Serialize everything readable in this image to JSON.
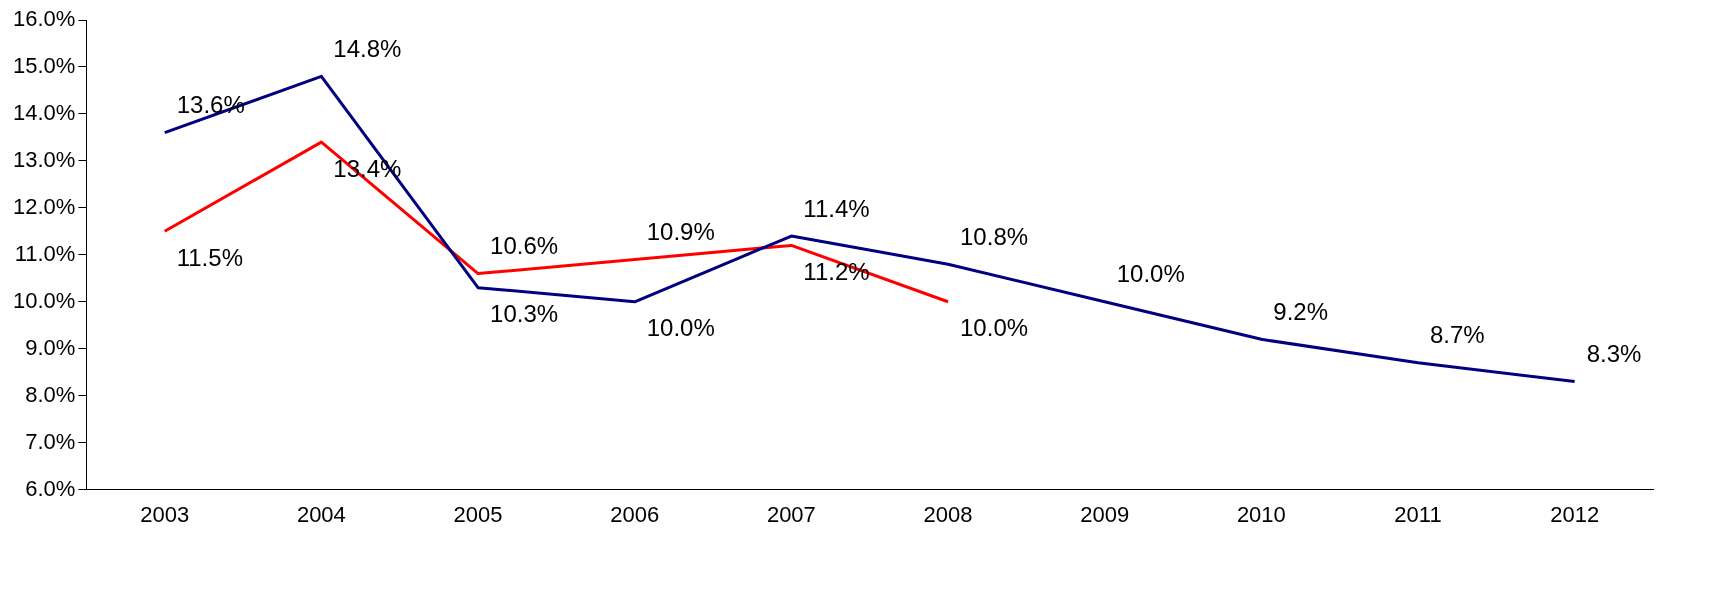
{
  "chart_data": {
    "type": "line",
    "categories": [
      "2003",
      "2004",
      "2005",
      "2006",
      "2007",
      "2008",
      "2009",
      "2010",
      "2011",
      "2012"
    ],
    "series": [
      {
        "color": "#000080",
        "values": [
          13.6,
          14.8,
          10.3,
          10.0,
          11.4,
          10.8,
          10.0,
          9.2,
          8.7,
          8.3
        ],
        "value_labels": [
          "13.6%",
          "14.8%",
          "10.3%",
          "10.0%",
          "11.4%",
          "10.8%",
          "10.0%",
          "9.2%",
          "8.7%",
          "8.3%"
        ]
      },
      {
        "color": "#ff0000",
        "values": [
          11.5,
          13.4,
          10.6,
          10.9,
          11.2,
          10.0,
          null,
          null,
          null,
          null
        ],
        "value_labels": [
          "11.5%",
          "13.4%",
          "10.6%",
          "10.9%",
          "11.2%",
          "10.0%",
          null,
          null,
          null,
          null
        ]
      }
    ],
    "ylim": [
      6,
      16
    ],
    "yticks": [
      {
        "value": 6,
        "label": "6.0%"
      },
      {
        "value": 7,
        "label": "7.0%"
      },
      {
        "value": 8,
        "label": "8.0%"
      },
      {
        "value": 9,
        "label": "9.0%"
      },
      {
        "value": 10,
        "label": "10.0%"
      },
      {
        "value": 11,
        "label": "11.0%"
      },
      {
        "value": 12,
        "label": "12.0%"
      },
      {
        "value": 13,
        "label": "13.0%"
      },
      {
        "value": 14,
        "label": "14.0%"
      },
      {
        "value": 15,
        "label": "15.0%"
      },
      {
        "value": 16,
        "label": "16.0%"
      }
    ],
    "grid": false,
    "legend": false,
    "marker": "none",
    "line_style": "solid"
  }
}
